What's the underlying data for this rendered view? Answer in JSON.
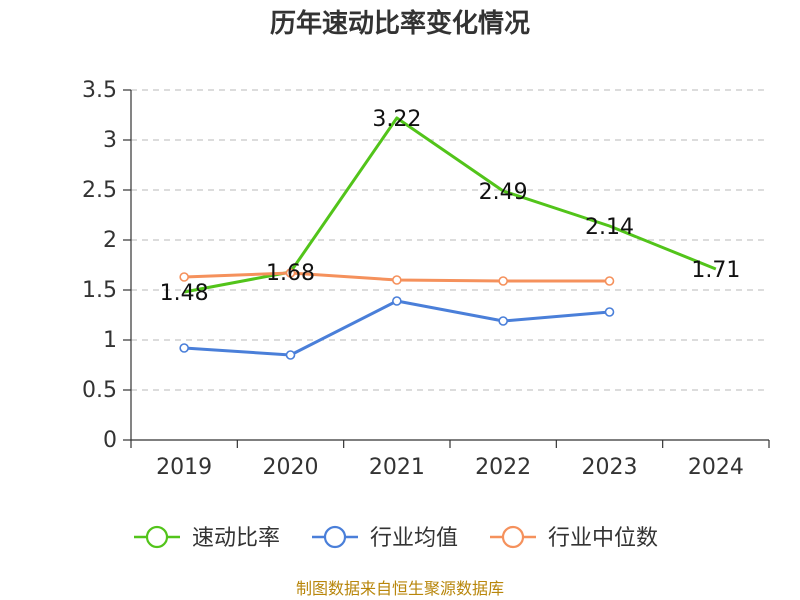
{
  "chart_data": {
    "type": "line",
    "title": "历年速动比率变化情况",
    "categories": [
      "2019",
      "2020",
      "2021",
      "2022",
      "2023",
      "2024"
    ],
    "ylim": [
      0,
      3.5
    ],
    "yticks": [
      "0",
      "0.5",
      "1",
      "1.5",
      "2",
      "2.5",
      "3",
      "3.5"
    ],
    "grid": true,
    "legend_position": "bottom",
    "series": [
      {
        "name": "速动比率",
        "color": "#52c41a",
        "marker": "none",
        "show_labels": true,
        "values": [
          1.48,
          1.68,
          3.22,
          2.49,
          2.14,
          1.71
        ]
      },
      {
        "name": "行业均值",
        "color": "#4a7fd9",
        "marker": "circle",
        "show_labels": false,
        "values": [
          0.92,
          0.85,
          1.39,
          1.19,
          1.28,
          null
        ]
      },
      {
        "name": "行业中位数",
        "color": "#f5915c",
        "marker": "circle",
        "show_labels": false,
        "values": [
          1.63,
          1.67,
          1.6,
          1.59,
          1.59,
          null
        ]
      }
    ],
    "source": "制图数据来自恒生聚源数据库"
  }
}
